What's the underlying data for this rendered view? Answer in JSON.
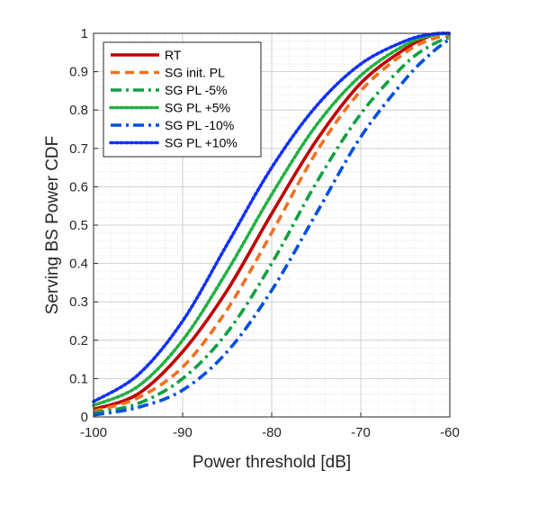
{
  "chart_data": {
    "type": "line",
    "xlabel": "Power threshold [dB]",
    "ylabel": "Serving BS Power CDF",
    "xlim": [
      -100,
      -60
    ],
    "ylim": [
      0,
      1
    ],
    "xticks": [
      -100,
      -90,
      -80,
      -70,
      -60
    ],
    "yticks": [
      0,
      0.1,
      0.2,
      0.3,
      0.4,
      0.5,
      0.6,
      0.7,
      0.8,
      0.9,
      1
    ],
    "grid": true,
    "legend_position": "top-left",
    "x": [
      -100,
      -95,
      -90,
      -85,
      -80,
      -75,
      -70,
      -65,
      -62,
      -60
    ],
    "series": [
      {
        "name": "RT",
        "color": "#c00000",
        "dash": "solid",
        "values": [
          0.02,
          0.06,
          0.17,
          0.33,
          0.53,
          0.72,
          0.87,
          0.96,
          0.995,
          1.0
        ]
      },
      {
        "name": "SG init. PL",
        "color": "#f07020",
        "dash": "dashed",
        "values": [
          0.015,
          0.05,
          0.13,
          0.28,
          0.48,
          0.69,
          0.85,
          0.95,
          0.985,
          0.995
        ]
      },
      {
        "name": "SG PL -5%",
        "color": "#10a040",
        "dash": "dashdot",
        "values": [
          0.01,
          0.035,
          0.1,
          0.22,
          0.4,
          0.61,
          0.79,
          0.92,
          0.97,
          0.99
        ]
      },
      {
        "name": "SG PL +5%",
        "color": "#20b040",
        "dash": "dotted",
        "values": [
          0.03,
          0.08,
          0.2,
          0.38,
          0.58,
          0.76,
          0.89,
          0.97,
          0.995,
          1.0
        ]
      },
      {
        "name": "SG PL -10%",
        "color": "#0050e0",
        "dash": "dashdot",
        "values": [
          0.005,
          0.025,
          0.07,
          0.17,
          0.33,
          0.53,
          0.73,
          0.88,
          0.95,
          0.985
        ]
      },
      {
        "name": "SG PL +10%",
        "color": "#1030ff",
        "dash": "dotted",
        "values": [
          0.04,
          0.11,
          0.25,
          0.45,
          0.65,
          0.81,
          0.92,
          0.98,
          0.998,
          1.0
        ]
      }
    ]
  }
}
